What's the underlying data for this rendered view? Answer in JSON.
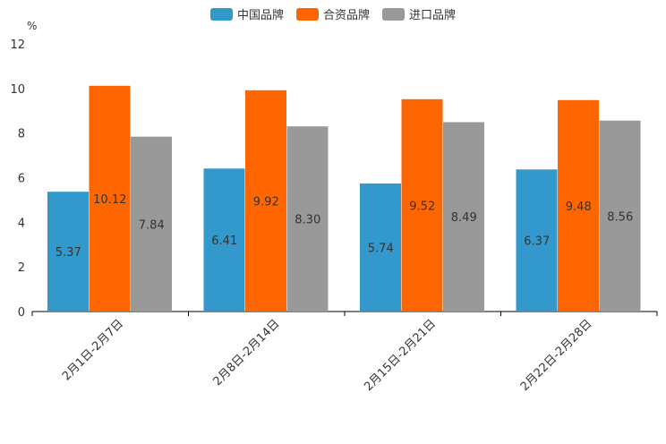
{
  "chart_data": {
    "type": "bar",
    "title": "",
    "ylabel": "%",
    "xlabel": "",
    "ylim": [
      0,
      12
    ],
    "yticks": [
      0,
      2,
      4,
      6,
      8,
      10,
      12
    ],
    "categories": [
      "2月1日-2月7日",
      "2月8日-2月14日",
      "2月15日-2月21日",
      "2月22日-2月28日"
    ],
    "series": [
      {
        "name": "中国品牌",
        "color": "#3399cc",
        "values": [
          5.37,
          6.41,
          5.74,
          6.37
        ],
        "labels": [
          "5.37",
          "6.41",
          "5.74",
          "6.37"
        ]
      },
      {
        "name": "合资品牌",
        "color": "#ff6600",
        "values": [
          10.12,
          9.92,
          9.52,
          9.48
        ],
        "labels": [
          "10.12",
          "9.92",
          "9.52",
          "9.48"
        ]
      },
      {
        "name": "进口品牌",
        "color": "#999999",
        "values": [
          7.84,
          8.3,
          8.49,
          8.56
        ],
        "labels": [
          "7.84",
          "8.30",
          "8.49",
          "8.56"
        ]
      }
    ],
    "legend_position": "top-center"
  }
}
